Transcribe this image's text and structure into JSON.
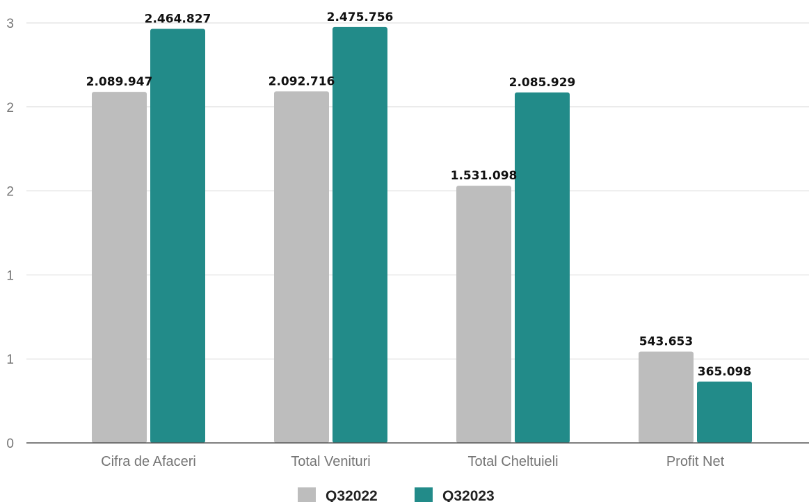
{
  "chart_data": {
    "type": "bar",
    "categories": [
      "Cifra de Afaceri",
      "Total Venituri",
      "Total Cheltuieli",
      "Profit Net"
    ],
    "series": [
      {
        "name": "Q32022",
        "color": "#bdbdbd",
        "values": [
          2.089947,
          2.092716,
          1.531098,
          0.543653
        ],
        "labels": [
          "2.089.947",
          "2.092.716",
          "1.531.098",
          "543.653"
        ]
      },
      {
        "name": "Q32023",
        "color": "#228b89",
        "values": [
          2.464827,
          2.475756,
          2.085929,
          0.365098
        ],
        "labels": [
          "2.464.827",
          "2.475.756",
          "2.085.929",
          "365.098"
        ]
      }
    ],
    "ytick_labels": [
      "0",
      "1",
      "1",
      "2",
      "2",
      "3"
    ],
    "ylim": [
      0,
      2.5
    ],
    "grid": true,
    "legend_position": "bottom-center",
    "title": "",
    "xlabel": "",
    "ylabel": ""
  }
}
